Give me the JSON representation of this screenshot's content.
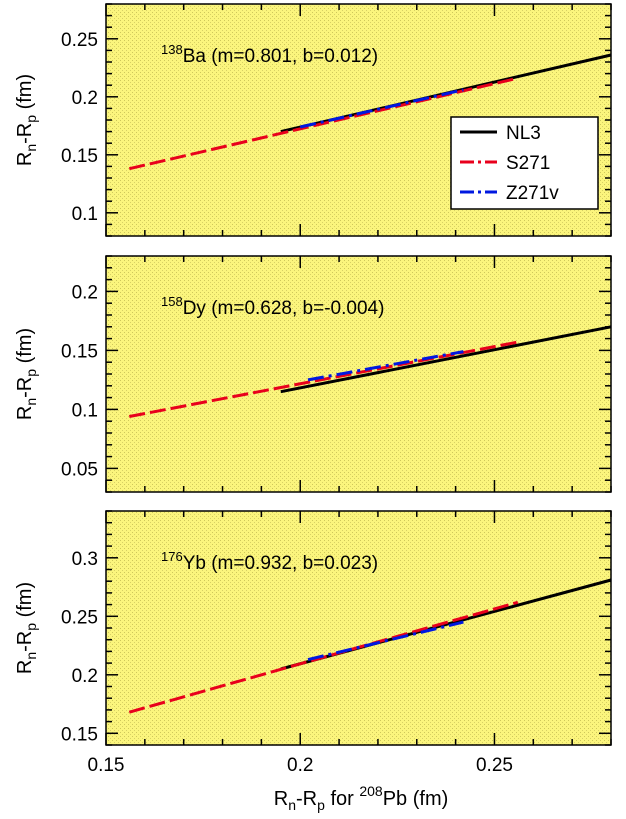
{
  "figure": {
    "xlabel_parts": [
      "R",
      "n",
      "-R",
      "p",
      " for ",
      "208",
      "Pb (fm)"
    ],
    "x_ticks": [
      0.15,
      0.2,
      0.25
    ],
    "x_tick_labels": [
      "0.15",
      "0.2",
      "0.25"
    ],
    "background": "#fbf57d",
    "series_colors": {
      "NL3": "#000000",
      "S271": "#e8001c",
      "Z271v": "#0018e0"
    }
  },
  "legend": {
    "placement": "right",
    "entries": [
      {
        "name": "NL3",
        "color": "#000000",
        "dash": "solid"
      },
      {
        "name": "S271",
        "color": "#e8001c",
        "dash": "dash-dot"
      },
      {
        "name": "Z271v",
        "color": "#0018e0",
        "dash": "dash-dot"
      }
    ]
  },
  "chart_data": [
    {
      "type": "line",
      "annotation": {
        "mass": "138",
        "element": "Ba",
        "text": " (m=0.801, b=0.012)"
      },
      "ylabel_parts": [
        "R",
        "n",
        "-R",
        "p",
        " (fm)"
      ],
      "xlim": [
        0.15,
        0.28
      ],
      "ylim": [
        0.08,
        0.28
      ],
      "y_ticks": [
        0.1,
        0.15,
        0.2,
        0.25
      ],
      "y_tick_labels": [
        "0.1",
        "0.15",
        "0.2",
        "0.25"
      ],
      "series": [
        {
          "name": "NL3",
          "x": [
            0.195,
            0.28
          ],
          "y": [
            0.17,
            0.236
          ]
        },
        {
          "name": "S271",
          "x": [
            0.156,
            0.256
          ],
          "y": [
            0.138,
            0.216
          ]
        },
        {
          "name": "Z271v",
          "x": [
            0.2,
            0.242
          ],
          "y": [
            0.174,
            0.206
          ]
        }
      ]
    },
    {
      "type": "line",
      "annotation": {
        "mass": "158",
        "element": "Dy",
        "text": " (m=0.628, b=-0.004)"
      },
      "ylabel_parts": [
        "R",
        "n",
        "-R",
        "p",
        " (fm)"
      ],
      "xlim": [
        0.15,
        0.28
      ],
      "ylim": [
        0.03,
        0.23
      ],
      "y_ticks": [
        0.05,
        0.1,
        0.15,
        0.2
      ],
      "y_tick_labels": [
        "0.05",
        "0.1",
        "0.15",
        "0.2"
      ],
      "series": [
        {
          "name": "NL3",
          "x": [
            0.195,
            0.28
          ],
          "y": [
            0.115,
            0.17
          ]
        },
        {
          "name": "S271",
          "x": [
            0.156,
            0.256
          ],
          "y": [
            0.094,
            0.157
          ]
        },
        {
          "name": "Z271v",
          "x": [
            0.202,
            0.242
          ],
          "y": [
            0.125,
            0.149
          ]
        }
      ]
    },
    {
      "type": "line",
      "annotation": {
        "mass": "176",
        "element": "Yb",
        "text": " (m=0.932, b=0.023)"
      },
      "ylabel_parts": [
        "R",
        "n",
        "-R",
        "p",
        " (fm)"
      ],
      "xlim": [
        0.15,
        0.28
      ],
      "ylim": [
        0.14,
        0.34
      ],
      "y_ticks": [
        0.15,
        0.2,
        0.25,
        0.3
      ],
      "y_tick_labels": [
        "0.15",
        "0.2",
        "0.25",
        "0.3"
      ],
      "series": [
        {
          "name": "NL3",
          "x": [
            0.195,
            0.28
          ],
          "y": [
            0.205,
            0.281
          ]
        },
        {
          "name": "S271",
          "x": [
            0.156,
            0.256
          ],
          "y": [
            0.168,
            0.262
          ]
        },
        {
          "name": "Z271v",
          "x": [
            0.202,
            0.242
          ],
          "y": [
            0.213,
            0.245
          ]
        }
      ]
    }
  ]
}
